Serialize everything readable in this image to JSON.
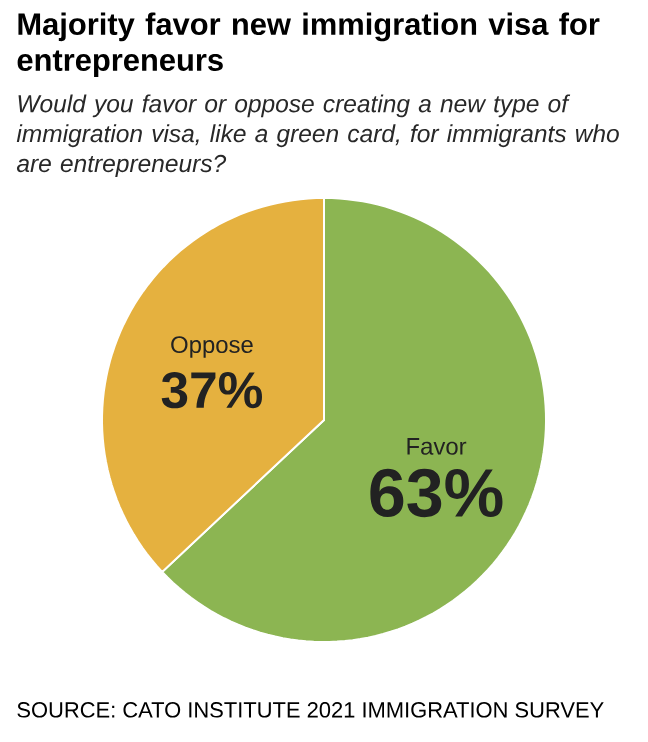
{
  "chart_data": {
    "type": "pie",
    "title": "Majority favor new immigration visa for entrepreneurs",
    "subtitle": "Would you favor or oppose creating a new type of immigration visa, like a green card, for immigrants who are entrepreneurs?",
    "categories": [
      "Favor",
      "Oppose"
    ],
    "values": [
      63,
      37
    ],
    "colors": [
      "#8cb552",
      "#e5b13f"
    ],
    "value_labels": [
      "63%",
      "37%"
    ],
    "annotations": [
      "SOURCE: CATO INSTITUTE 2021 IMMIGRATION SURVEY"
    ]
  }
}
